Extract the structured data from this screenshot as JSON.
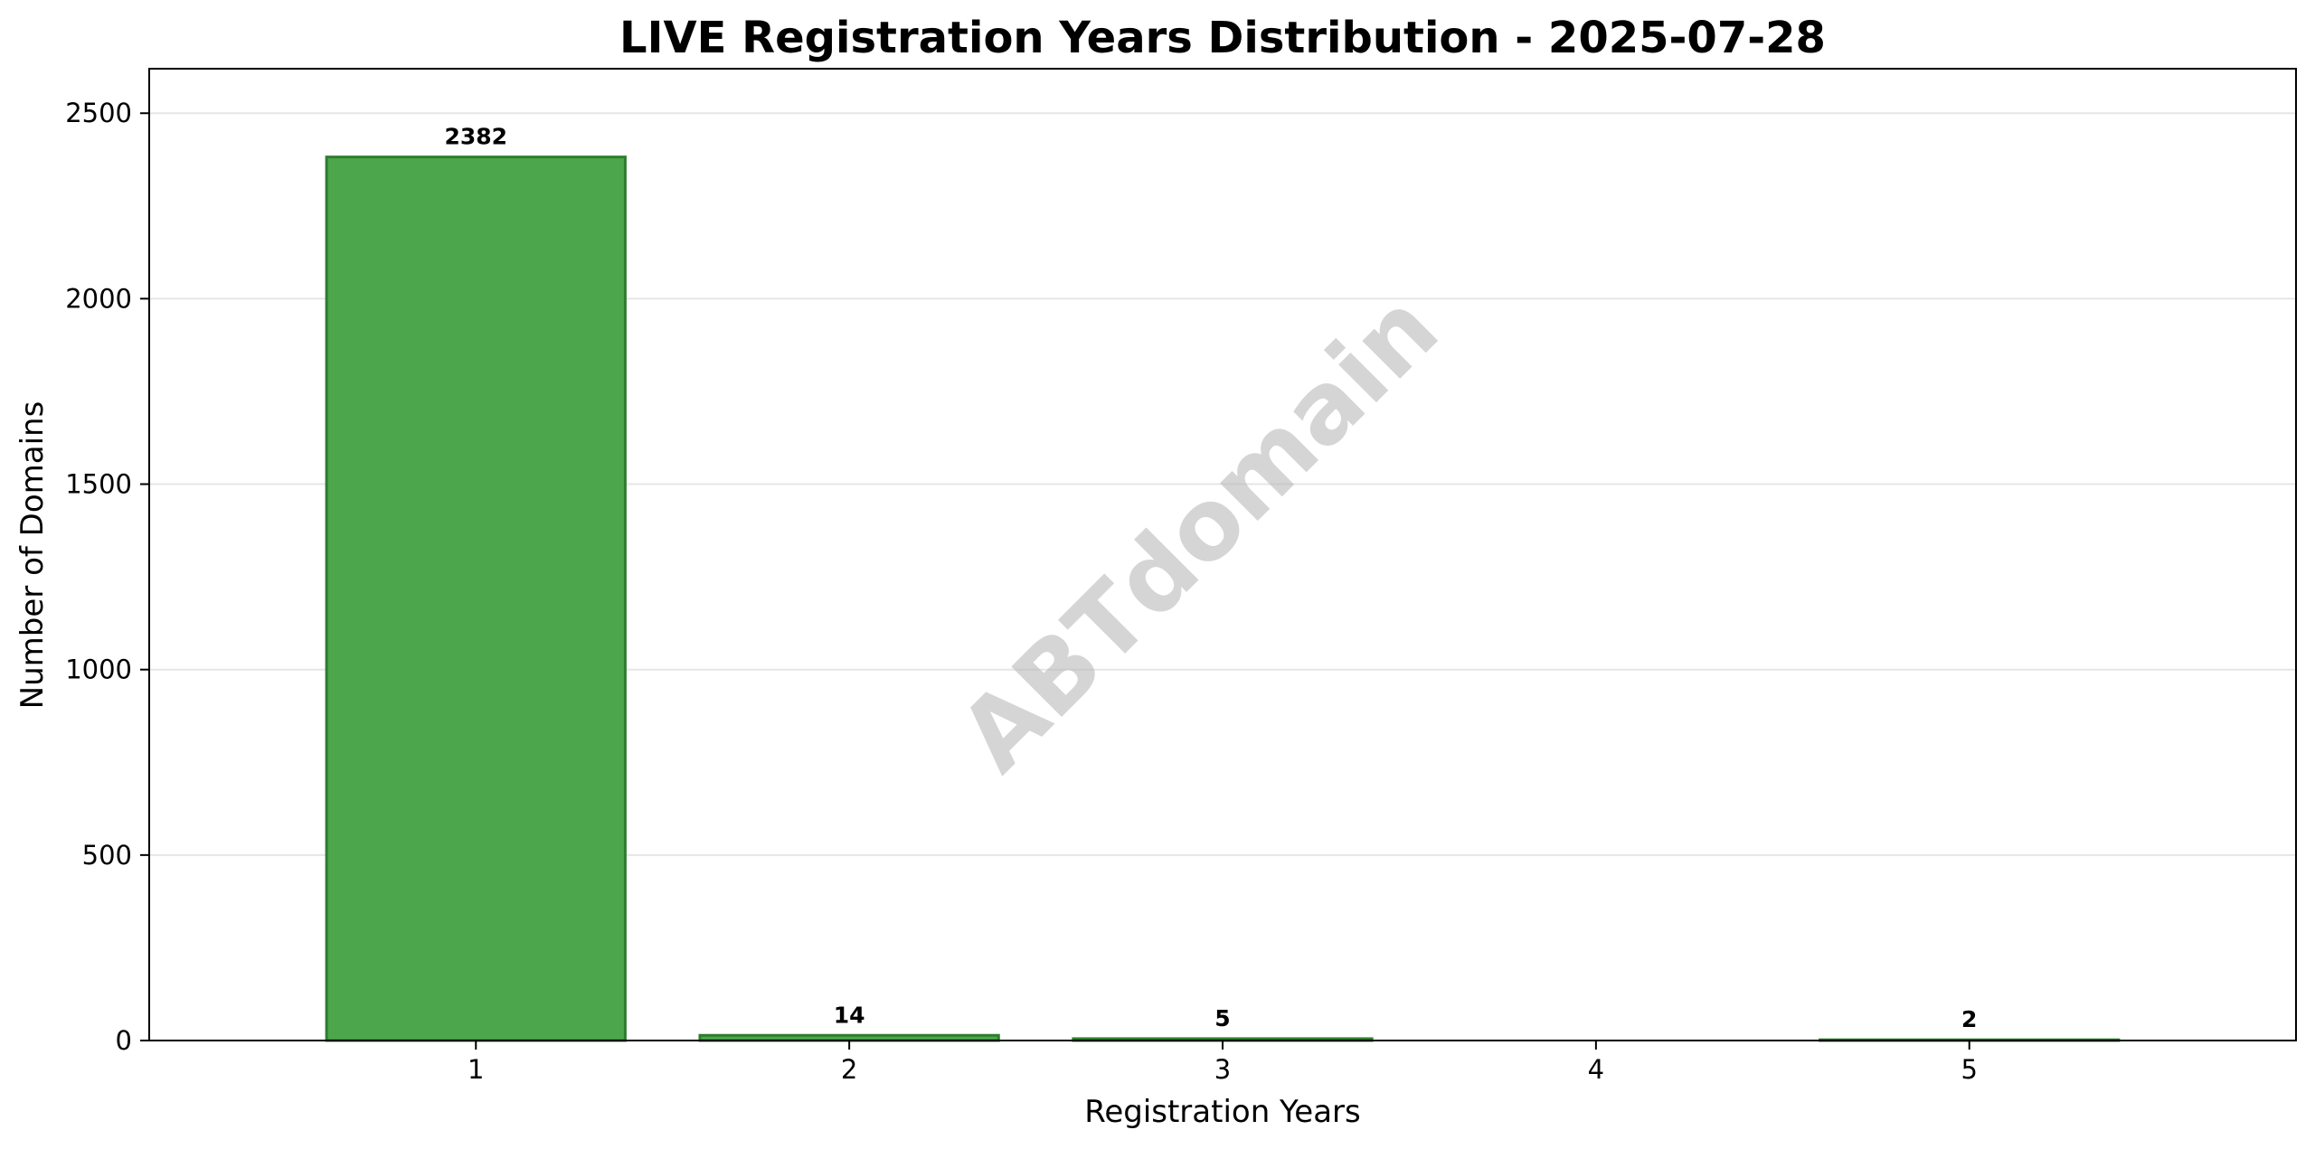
{
  "chart_data": {
    "type": "bar",
    "title": "LIVE Registration Years Distribution - 2025-07-28",
    "xlabel": "Registration Years",
    "ylabel": "Number of Domains",
    "categories": [
      "1",
      "2",
      "3",
      "4",
      "5"
    ],
    "values": [
      2382,
      14,
      5,
      0,
      2
    ],
    "data_labels": [
      "2382",
      "14",
      "5",
      "",
      "2"
    ],
    "ylim": [
      0,
      2620
    ],
    "yticks": [
      0,
      500,
      1000,
      1500,
      2000,
      2500
    ],
    "grid": "horizontal",
    "legend": "none",
    "bar_color": "#4ca64c",
    "bar_edge_color": "#2e7d2e",
    "grid_color": "#e6e6e6",
    "watermark": "ABTdomain"
  }
}
